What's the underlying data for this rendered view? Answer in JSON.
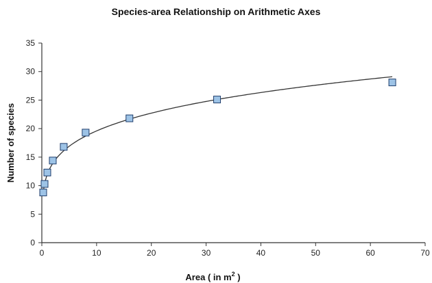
{
  "chart_data": {
    "type": "scatter",
    "title": "Species-area Relationship on Arithmetic Axes",
    "xlabel": "Area ( in m",
    "xlabel_superscript": "2",
    "xlabel_suffix": " )",
    "ylabel": "Number of species",
    "xlim": [
      0,
      70
    ],
    "ylim": [
      0,
      35
    ],
    "xticks": [
      0,
      10,
      20,
      30,
      40,
      50,
      60,
      70
    ],
    "yticks": [
      0,
      5,
      10,
      15,
      20,
      25,
      30,
      35
    ],
    "grid": false,
    "legend": "none",
    "series": [
      {
        "points": [
          {
            "x": 0.25,
            "y": 8.8
          },
          {
            "x": 0.5,
            "y": 10.3
          },
          {
            "x": 1,
            "y": 12.3
          },
          {
            "x": 2,
            "y": 14.4
          },
          {
            "x": 4,
            "y": 16.8
          },
          {
            "x": 8,
            "y": 19.3
          },
          {
            "x": 16,
            "y": 21.8
          },
          {
            "x": 32,
            "y": 25.1
          },
          {
            "x": 64,
            "y": 28.1
          }
        ],
        "marker_color": "#9dc3e6",
        "marker_edge": "#1f3d6b"
      }
    ],
    "trendline": {
      "type": "power",
      "coefficient": 12.0,
      "exponent": 0.213,
      "x_range": [
        0.25,
        64
      ],
      "color": "#333333"
    }
  }
}
